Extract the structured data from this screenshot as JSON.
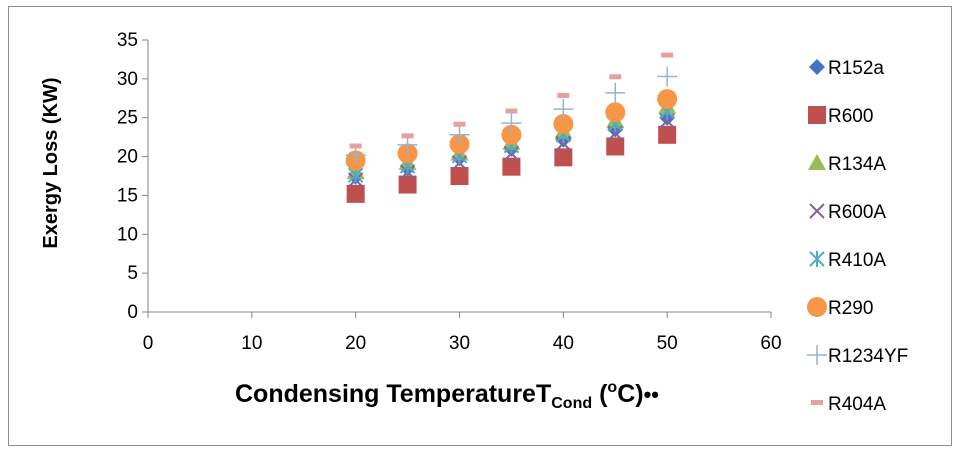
{
  "chart_data": {
    "type": "scatter",
    "title": "",
    "xlabel": {
      "main": "Condensing Temperature",
      "T": "T",
      "sub": "Cond",
      "paren_open": " (",
      "sup": "o",
      "unit": "C)",
      "dots": "••"
    },
    "ylabel": "Exergy Loss (KW)",
    "xlim": [
      0,
      60
    ],
    "ylim": [
      0,
      35
    ],
    "x_ticks": [
      "0",
      "10",
      "20",
      "30",
      "40",
      "50",
      "60"
    ],
    "y_ticks": [
      "0",
      "5",
      "10",
      "15",
      "20",
      "25",
      "30",
      "35"
    ],
    "grid": false,
    "legend_position": "right",
    "x": [
      20,
      25,
      30,
      35,
      40,
      45,
      50
    ],
    "series": [
      {
        "name": "R152a",
        "marker": "diamond",
        "color": "#4472C4",
        "values": [
          17.4,
          18.5,
          19.8,
          21.0,
          22.2,
          23.5,
          25.0
        ]
      },
      {
        "name": "R600",
        "marker": "square",
        "color": "#C0504D",
        "values": [
          15.2,
          16.4,
          17.5,
          18.7,
          19.9,
          21.3,
          22.8
        ]
      },
      {
        "name": "R134A",
        "marker": "triangle",
        "color": "#9BBB59",
        "values": [
          18.0,
          19.2,
          20.4,
          21.8,
          23.2,
          24.6,
          26.4
        ]
      },
      {
        "name": "R600A",
        "marker": "x",
        "color": "#8064A2",
        "values": [
          17.0,
          18.0,
          19.2,
          20.4,
          21.7,
          23.0,
          24.6
        ]
      },
      {
        "name": "R410A",
        "marker": "star",
        "color": "#4BACC6",
        "values": [
          17.6,
          18.8,
          20.1,
          21.4,
          22.8,
          24.2,
          25.8
        ]
      },
      {
        "name": "R290",
        "marker": "circle",
        "color": "#F79646",
        "values": [
          19.5,
          20.4,
          21.6,
          22.8,
          24.2,
          25.7,
          27.4
        ]
      },
      {
        "name": "R1234YF",
        "marker": "plus",
        "color": "#95B3D7",
        "values": [
          20.2,
          21.5,
          22.8,
          24.3,
          26.1,
          28.2,
          30.3
        ]
      },
      {
        "name": "R404A",
        "marker": "dash",
        "color": "#E6A0A0",
        "values": [
          21.3,
          22.6,
          24.1,
          25.8,
          27.8,
          30.2,
          33.0
        ]
      }
    ]
  }
}
